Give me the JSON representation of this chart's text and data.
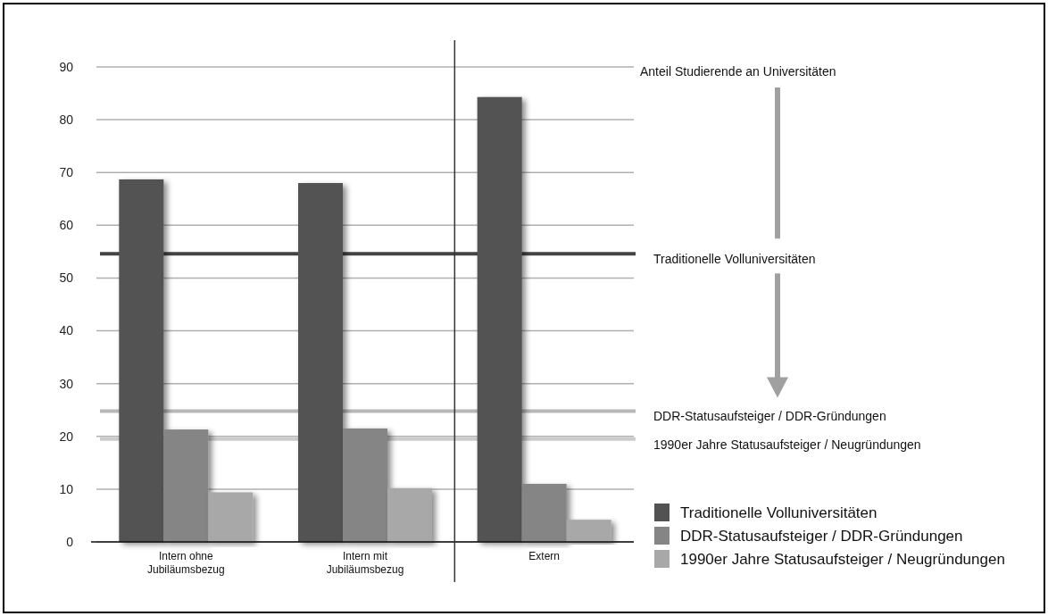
{
  "chart_data": {
    "type": "bar",
    "categories": [
      "Intern ohne Jubiläumsbezug",
      "Intern mit Jubiläumsbezug",
      "Extern"
    ],
    "series": [
      {
        "name": "Traditionelle Volluniversitäten",
        "color": "#525252",
        "values": [
          68.7,
          68.0,
          84.3
        ]
      },
      {
        "name": "DDR-Statusaufsteiger / DDR-Gründungen",
        "color": "#858585",
        "values": [
          21.3,
          21.5,
          11.0
        ]
      },
      {
        "name": "1990er Jahre Statusaufsteiger / Neugründungen",
        "color": "#a8a8a8",
        "values": [
          9.4,
          10.2,
          4.2
        ]
      }
    ],
    "ylim": [
      0,
      90
    ],
    "yticks": [
      0,
      10,
      20,
      30,
      40,
      50,
      60,
      70,
      80,
      90
    ],
    "grid": "y",
    "legend": "bottom right",
    "ref_lines": [
      {
        "axis": "y",
        "value": 54.6,
        "label": "Traditionelle Volluniversitäten",
        "color": "#444444"
      },
      {
        "axis": "y",
        "value": 24.8,
        "label": "DDR-Statusaufsteiger / DDR-Gründungen",
        "color": "#b8b8b8"
      },
      {
        "axis": "y",
        "value": 19.5,
        "label": "1990er Jahre Statusaufsteiger / Neugründungen",
        "color": "#cccccc"
      },
      {
        "axis": "x",
        "value": "Extern",
        "color": "#333333"
      }
    ],
    "annotations": [
      "Anteil Studierende an Universitäten"
    ]
  }
}
